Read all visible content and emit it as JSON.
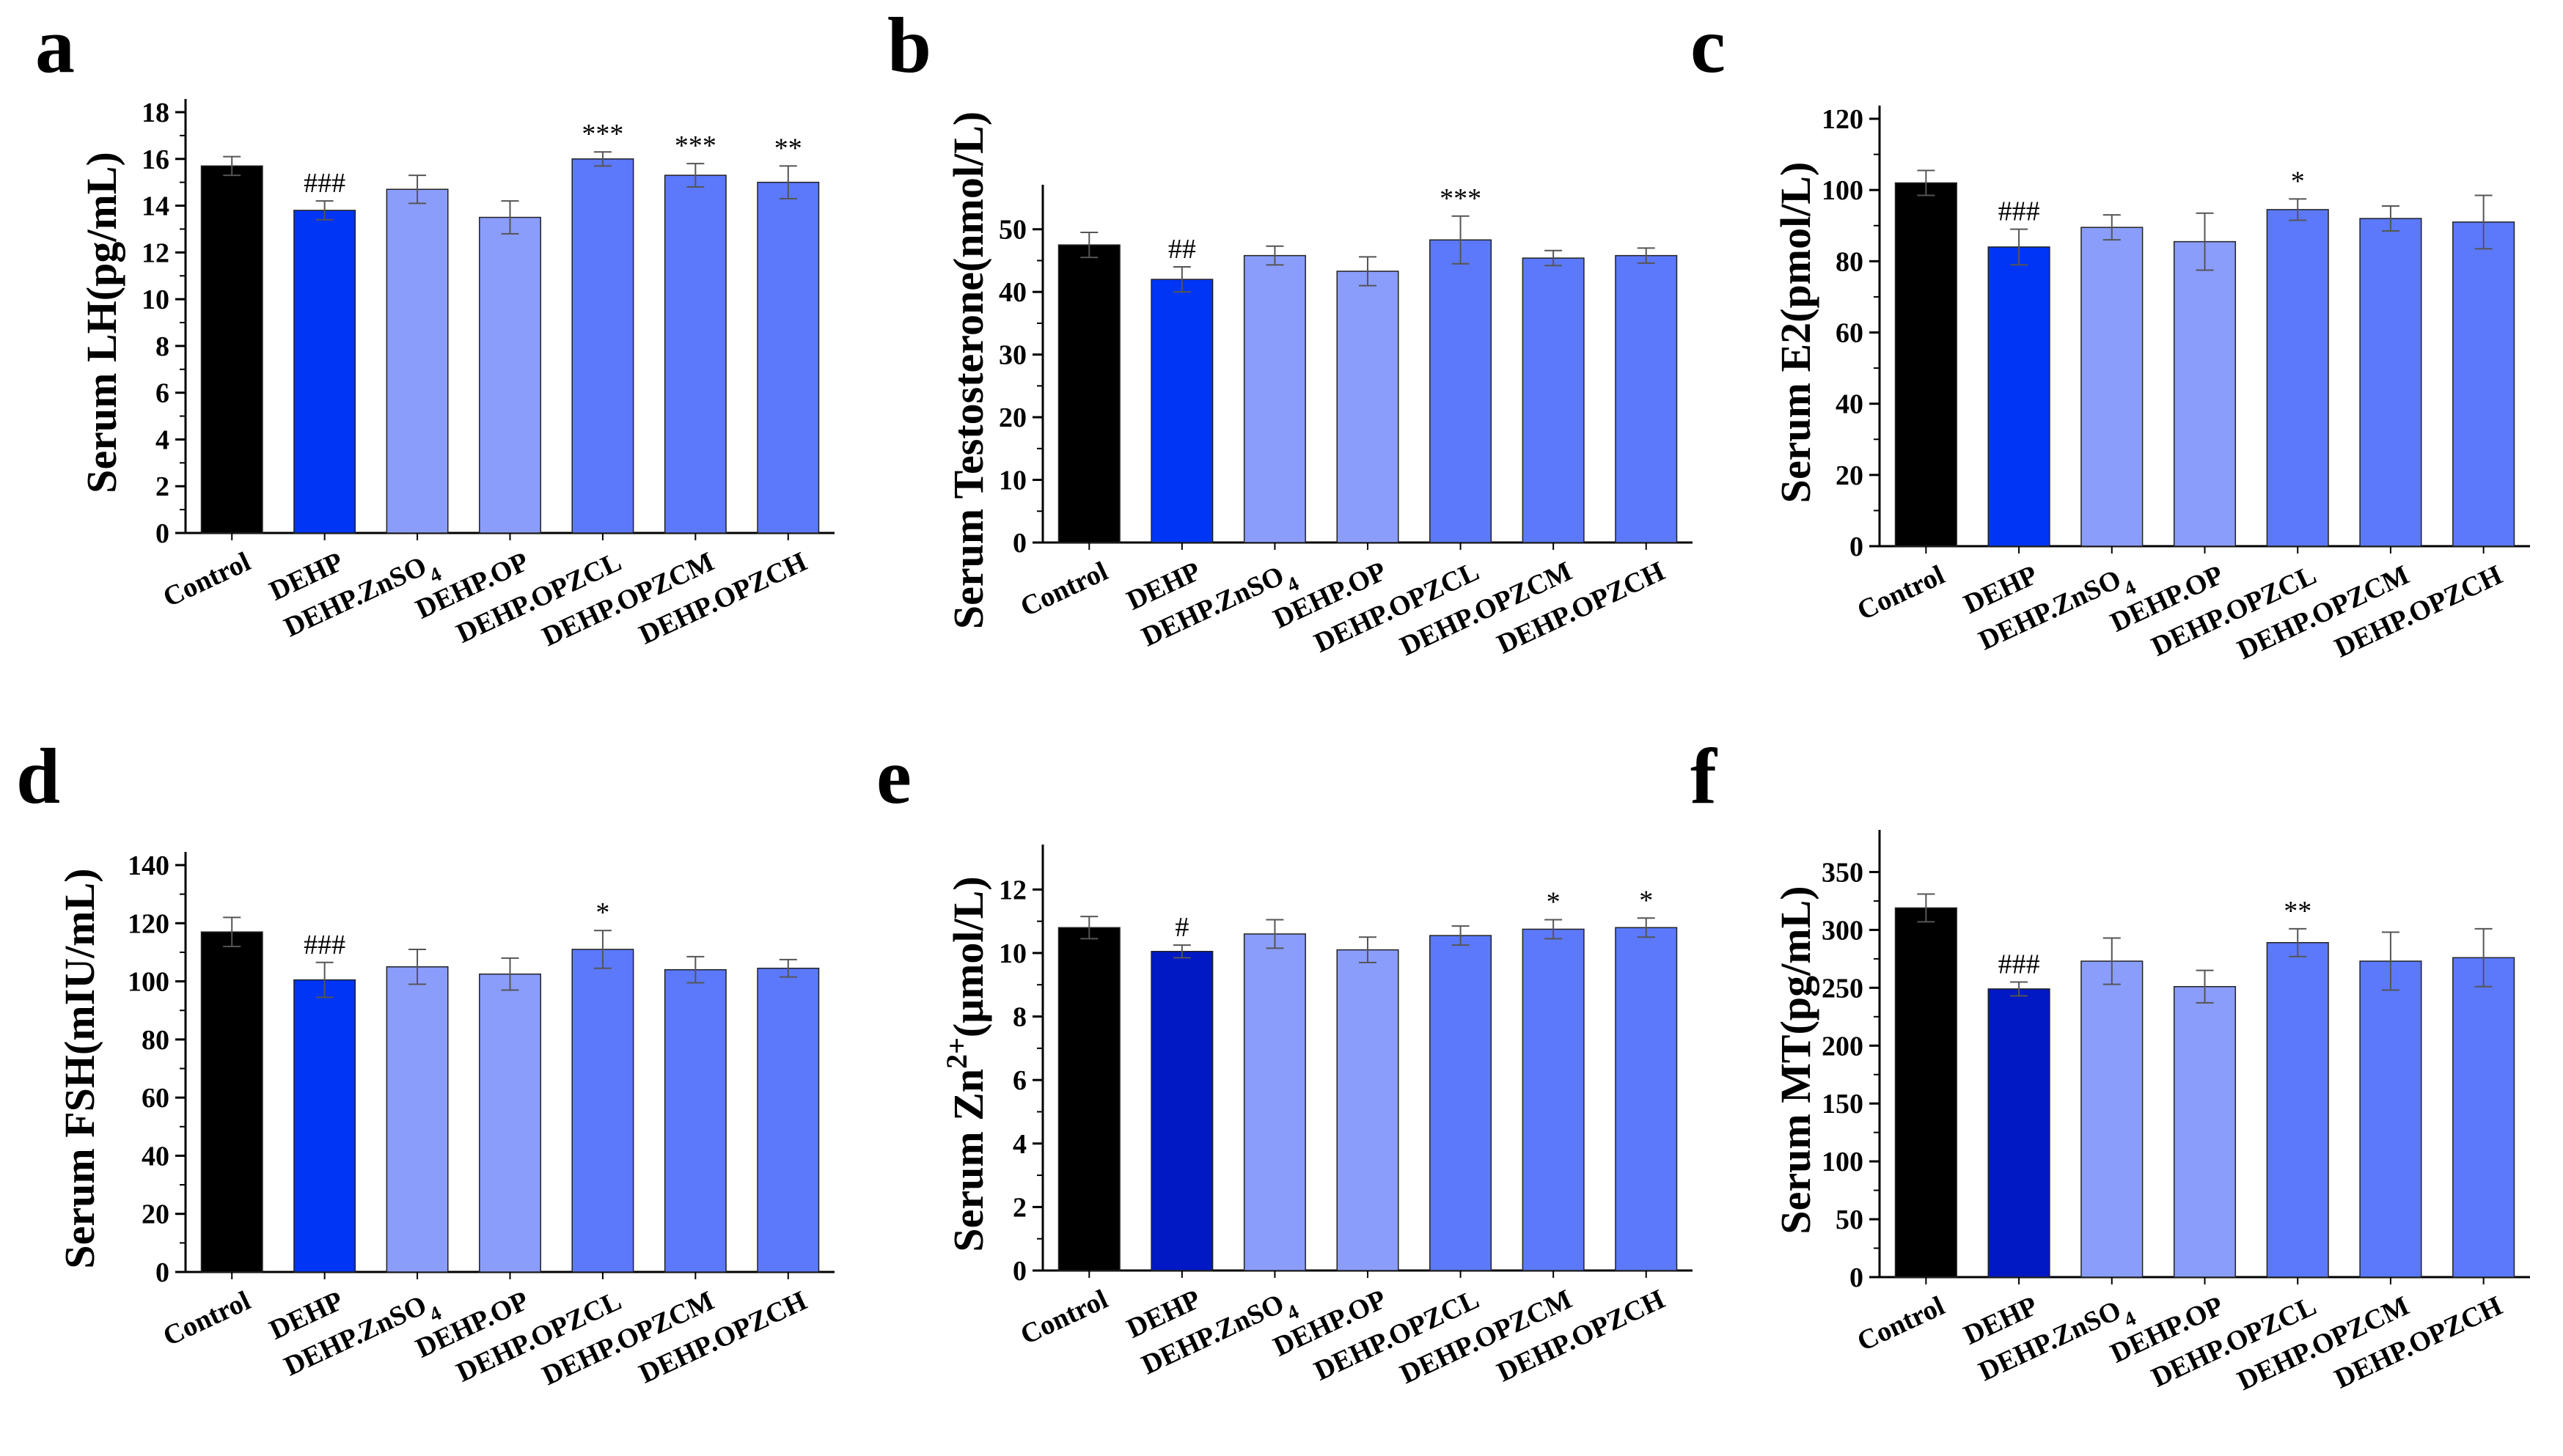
{
  "figure": {
    "colors": {
      "control": "#000000",
      "dehp": "#0035f5",
      "dehp_dark": "#0019c4",
      "light": "#8b9dfb",
      "mid": "#5c79fb",
      "axis": "#000000",
      "error": "#555555"
    }
  },
  "chart_data": [
    {
      "id": "a",
      "panel_label": "a",
      "type": "bar",
      "categories": [
        "Control",
        "DEHP",
        "DEHP.ZnSO4",
        "DEHP.OP",
        "DEHP.OPZCL",
        "DEHP.OPZCM",
        "DEHP.OPZCH"
      ],
      "values": [
        15.7,
        13.8,
        14.7,
        13.5,
        16.0,
        15.3,
        15.0
      ],
      "errors": [
        0.4,
        0.4,
        0.6,
        0.7,
        0.3,
        0.5,
        0.7
      ],
      "annotations": [
        "",
        "###",
        "",
        "",
        "***",
        "***",
        "**"
      ],
      "color_keys": [
        "control",
        "dehp",
        "light",
        "light",
        "mid",
        "mid",
        "mid"
      ],
      "ylabel": "Serum LH(pg/mL)",
      "ylim": [
        0,
        18
      ],
      "yticks": [
        0,
        2,
        4,
        6,
        8,
        10,
        12,
        14,
        16,
        18
      ]
    },
    {
      "id": "b",
      "panel_label": "b",
      "type": "bar",
      "categories": [
        "Control",
        "DEHP",
        "DEHP.ZnSO4",
        "DEHP.OP",
        "DEHP.OPZCL",
        "DEHP.OPZCM",
        "DEHP.OPZCH"
      ],
      "values": [
        47.5,
        42.0,
        45.8,
        43.3,
        48.3,
        45.4,
        45.8
      ],
      "errors": [
        2.0,
        2.0,
        1.5,
        2.3,
        3.8,
        1.2,
        1.2
      ],
      "annotations": [
        "",
        "##",
        "",
        "",
        "***",
        "",
        ""
      ],
      "color_keys": [
        "control",
        "dehp",
        "light",
        "light",
        "mid",
        "mid",
        "mid"
      ],
      "ylabel": "Serum Testosterone(nmol/L)",
      "ylim": [
        0,
        55
      ],
      "yticks": [
        0,
        10,
        20,
        30,
        40,
        50
      ]
    },
    {
      "id": "c",
      "panel_label": "c",
      "type": "bar",
      "categories": [
        "Control",
        "DEHP",
        "DEHP.ZnSO4",
        "DEHP.OP",
        "DEHP.OPZCL",
        "DEHP.OPZCM",
        "DEHP.OPZCH"
      ],
      "values": [
        102,
        84,
        89.5,
        85.5,
        94.5,
        92,
        91
      ],
      "errors": [
        3.5,
        5,
        3.5,
        8,
        3,
        3.5,
        7.5
      ],
      "annotations": [
        "",
        "###",
        "",
        "",
        "*",
        "",
        ""
      ],
      "color_keys": [
        "control",
        "dehp",
        "light",
        "light",
        "mid",
        "mid",
        "mid"
      ],
      "ylabel": "Serum E2(pmol/L)",
      "ylim": [
        0,
        120
      ],
      "yticks": [
        0,
        20,
        40,
        60,
        80,
        100,
        120
      ]
    },
    {
      "id": "d",
      "panel_label": "d",
      "type": "bar",
      "categories": [
        "Control",
        "DEHP",
        "DEHP.ZnSO4",
        "DEHP.OP",
        "DEHP.OPZCL",
        "DEHP.OPZCM",
        "DEHP.OPZCH"
      ],
      "values": [
        117,
        100.5,
        105,
        102.5,
        111,
        104,
        104.5
      ],
      "errors": [
        5,
        6,
        6,
        5.5,
        6.5,
        4.5,
        3
      ],
      "annotations": [
        "",
        "###",
        "",
        "",
        "*",
        "",
        ""
      ],
      "color_keys": [
        "control",
        "dehp",
        "light",
        "light",
        "mid",
        "mid",
        "mid"
      ],
      "ylabel": "Serum FSH(mIU/mL)",
      "ylim": [
        0,
        140
      ],
      "yticks": [
        0,
        20,
        40,
        60,
        80,
        100,
        120,
        140
      ]
    },
    {
      "id": "e",
      "panel_label": "e",
      "type": "bar",
      "categories": [
        "Control",
        "DEHP",
        "DEHP.ZnSO4",
        "DEHP.OP",
        "DEHP.OPZCL",
        "DEHP.OPZCM",
        "DEHP.OPZCH"
      ],
      "values": [
        10.8,
        10.05,
        10.6,
        10.1,
        10.55,
        10.75,
        10.8
      ],
      "errors": [
        0.35,
        0.2,
        0.45,
        0.4,
        0.3,
        0.3,
        0.3
      ],
      "annotations": [
        "",
        "#",
        "",
        "",
        "",
        "*",
        "*"
      ],
      "color_keys": [
        "control",
        "dehp_dark",
        "light",
        "light",
        "mid",
        "mid",
        "mid"
      ],
      "ylabel_main": "Serum Zn",
      "ylabel_sup": "2+",
      "ylabel_tail": "(μmol/L)",
      "ylim": [
        0,
        13
      ],
      "yticks": [
        0,
        2,
        4,
        6,
        8,
        10,
        12
      ]
    },
    {
      "id": "f",
      "panel_label": "f",
      "type": "bar",
      "categories": [
        "Control",
        "DEHP",
        "DEHP.ZnSO4",
        "DEHP.OP",
        "DEHP.OPZCL",
        "DEHP.OPZCM",
        "DEHP.OPZCH"
      ],
      "values": [
        319,
        249,
        273,
        251,
        289,
        273,
        276
      ],
      "errors": [
        12,
        6,
        20,
        14,
        12,
        25,
        25
      ],
      "annotations": [
        "",
        "###",
        "",
        "",
        "**",
        "",
        ""
      ],
      "color_keys": [
        "control",
        "dehp_dark",
        "light",
        "light",
        "mid",
        "mid",
        "mid"
      ],
      "ylabel": "Serum MT(pg/mL)",
      "ylim": [
        0,
        375
      ],
      "yticks": [
        0,
        50,
        100,
        150,
        200,
        250,
        300,
        350
      ]
    }
  ]
}
